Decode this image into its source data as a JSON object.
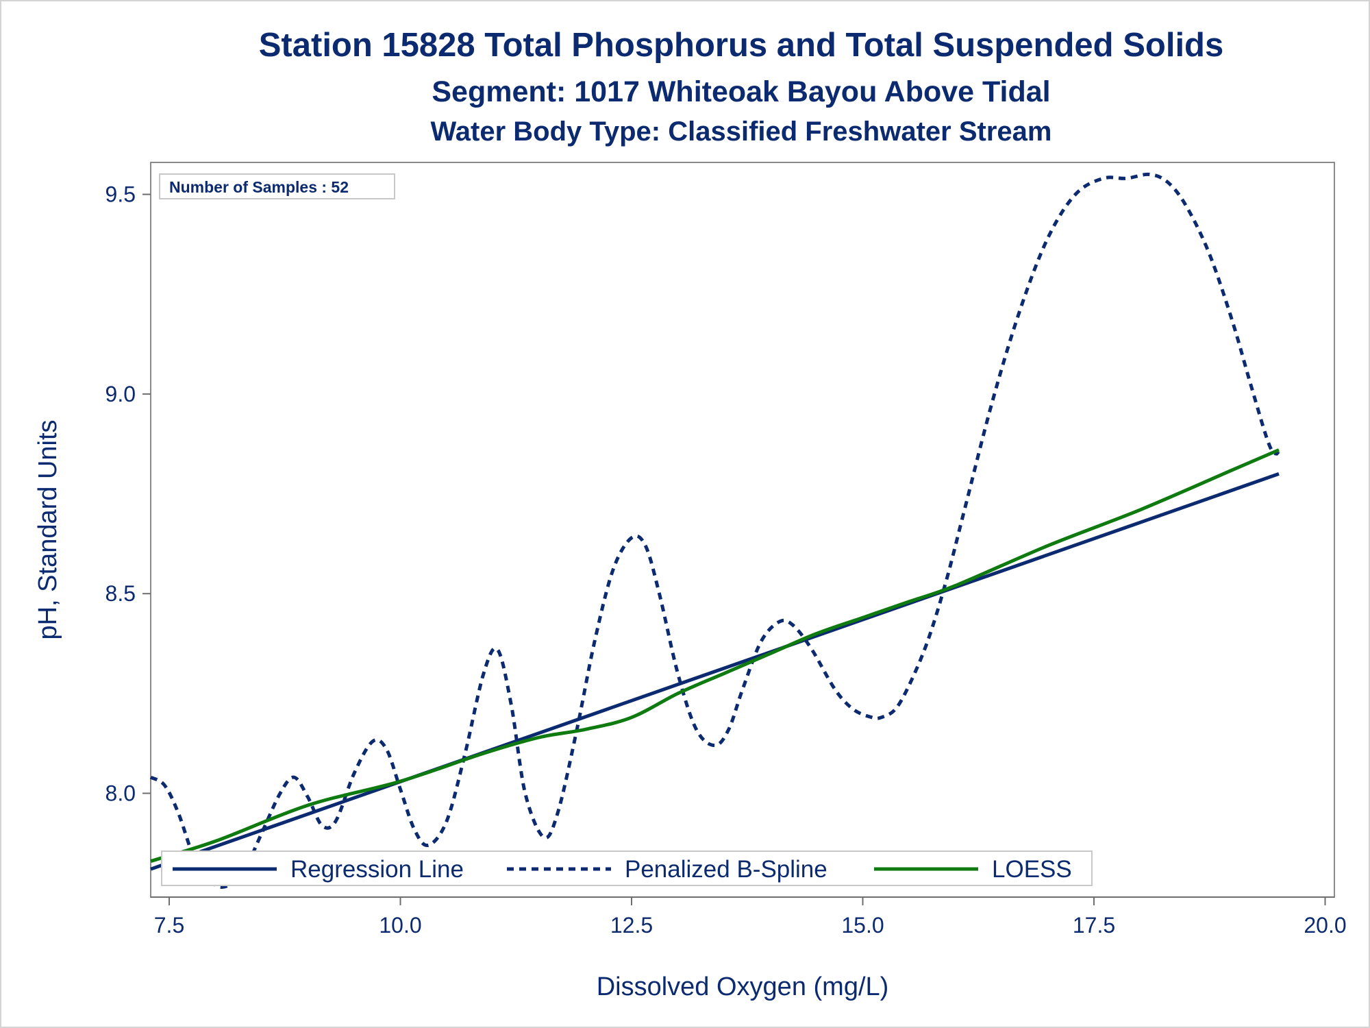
{
  "chart_data": {
    "type": "line",
    "title": "Station 15828  Total Phosphorus and Total Suspended Solids",
    "subtitle": "Segment: 1017  Whiteoak Bayou Above Tidal",
    "subtitle2": "Water Body Type: Classified Freshwater Stream",
    "xlabel": "Dissolved Oxygen (mg/L)",
    "ylabel": "pH, Standard Units",
    "xlim": [
      7.3,
      20.1
    ],
    "ylim": [
      7.74,
      9.58
    ],
    "xticks": [
      "7.5",
      "10.0",
      "12.5",
      "15.0",
      "17.5",
      "20.0"
    ],
    "xtick_values": [
      7.5,
      10.0,
      12.5,
      15.0,
      17.5,
      20.0
    ],
    "yticks": [
      "8.0",
      "8.5",
      "9.0",
      "9.5"
    ],
    "ytick_values": [
      8.0,
      8.5,
      9.0,
      9.5
    ],
    "grid": false,
    "legend_position": "bottom-left",
    "inset_label": "Number of Samples : 52",
    "series": [
      {
        "name": "Regression Line",
        "style": "solid",
        "color": "#0b2a6f",
        "x": [
          7.3,
          19.5
        ],
        "y": [
          7.81,
          8.8
        ]
      },
      {
        "name": "Penalized B-Spline",
        "style": "dashed",
        "color": "#0b2a6f",
        "x": [
          7.3,
          7.45,
          7.6,
          7.8,
          8.0,
          8.15,
          8.3,
          8.5,
          8.7,
          8.85,
          9.0,
          9.15,
          9.3,
          9.5,
          9.7,
          9.85,
          10.0,
          10.15,
          10.3,
          10.5,
          10.7,
          10.9,
          11.05,
          11.2,
          11.35,
          11.55,
          11.7,
          11.9,
          12.1,
          12.3,
          12.5,
          12.65,
          12.8,
          13.0,
          13.2,
          13.4,
          13.55,
          13.7,
          13.9,
          14.1,
          14.25,
          14.45,
          14.7,
          14.9,
          15.1,
          15.2,
          15.35,
          15.5,
          15.7,
          15.9,
          16.1,
          16.4,
          16.7,
          17.0,
          17.3,
          17.6,
          17.85,
          18.1,
          18.3,
          18.5,
          18.75,
          19.0,
          19.2,
          19.4,
          19.5
        ],
        "y": [
          8.04,
          8.02,
          7.95,
          7.82,
          7.77,
          7.77,
          7.8,
          7.9,
          8.0,
          8.04,
          7.99,
          7.92,
          7.93,
          8.05,
          8.13,
          8.11,
          8.01,
          7.91,
          7.87,
          7.93,
          8.1,
          8.3,
          8.36,
          8.22,
          8.0,
          7.89,
          7.95,
          8.15,
          8.38,
          8.56,
          8.64,
          8.62,
          8.5,
          8.3,
          8.16,
          8.12,
          8.16,
          8.26,
          8.38,
          8.43,
          8.42,
          8.36,
          8.26,
          8.21,
          8.19,
          8.19,
          8.21,
          8.27,
          8.38,
          8.53,
          8.71,
          8.98,
          9.21,
          9.39,
          9.5,
          9.54,
          9.54,
          9.55,
          9.53,
          9.47,
          9.35,
          9.18,
          9.02,
          8.87,
          8.85
        ]
      },
      {
        "name": "LOESS",
        "style": "solid",
        "color": "#0f7a0f",
        "x": [
          7.3,
          8.0,
          9.0,
          10.0,
          10.9,
          11.5,
          12.0,
          12.5,
          13.0,
          13.5,
          14.0,
          14.5,
          15.0,
          15.5,
          16.0,
          17.0,
          18.0,
          19.0,
          19.5
        ],
        "y": [
          7.83,
          7.88,
          7.97,
          8.03,
          8.1,
          8.14,
          8.16,
          8.19,
          8.25,
          8.3,
          8.35,
          8.4,
          8.44,
          8.48,
          8.52,
          8.62,
          8.71,
          8.81,
          8.86
        ]
      }
    ]
  }
}
